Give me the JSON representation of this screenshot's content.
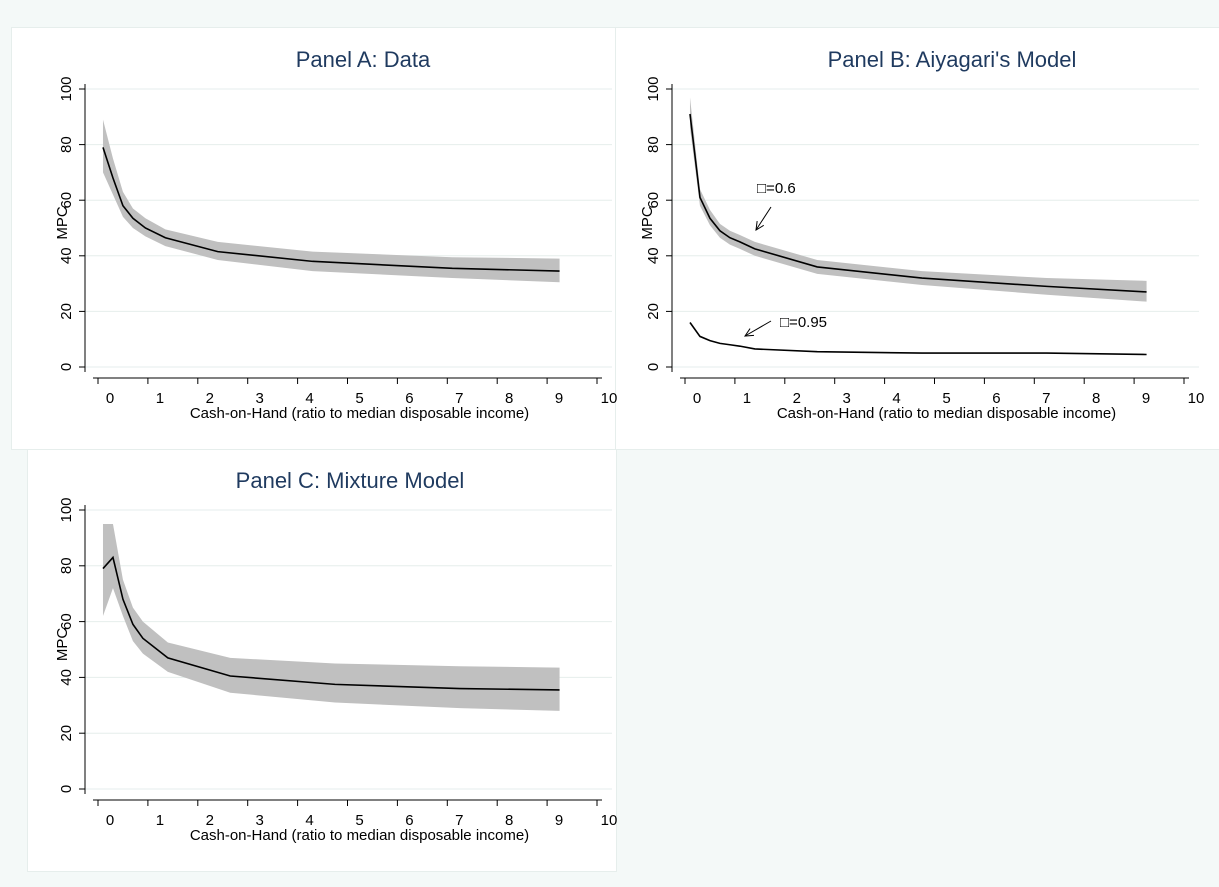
{
  "chart_data": [
    {
      "type": "line",
      "title": "Panel A: Data",
      "xlabel": "Cash-on-Hand (ratio to median disposable income)",
      "ylabel": "MPC",
      "xlim": [
        0,
        10
      ],
      "ylim": [
        0,
        100
      ],
      "xticks": [
        "0",
        "1",
        "2",
        "3",
        "4",
        "5",
        "6",
        "7",
        "8",
        "9",
        "10"
      ],
      "yticks": [
        "0",
        "20",
        "40",
        "60",
        "80",
        "100"
      ],
      "grid": true,
      "series": [
        {
          "x": [
            0.1,
            0.3,
            0.5,
            0.7,
            0.95,
            1.35,
            2.4,
            4.3,
            7.1,
            9.25
          ],
          "y": [
            79,
            68,
            58,
            53.5,
            50,
            46.5,
            41.5,
            38,
            35.5,
            34.5
          ],
          "lower": [
            70,
            62,
            54,
            50,
            47,
            43.5,
            38.5,
            34.5,
            32,
            30.5
          ],
          "upper": [
            89,
            75,
            63,
            57,
            53.5,
            49.5,
            45,
            41.5,
            39.5,
            39
          ]
        }
      ],
      "annotations": []
    },
    {
      "type": "line",
      "title": "Panel B: Aiyagari's Model",
      "xlabel": "Cash-on-Hand (ratio to median disposable income)",
      "ylabel": "MPC",
      "xlim": [
        0,
        10
      ],
      "ylim": [
        0,
        100
      ],
      "xticks": [
        "0",
        "1",
        "2",
        "3",
        "4",
        "5",
        "6",
        "7",
        "8",
        "9",
        "10"
      ],
      "yticks": [
        "0",
        "20",
        "40",
        "60",
        "80",
        "100"
      ],
      "grid": true,
      "series": [
        {
          "x": [
            0.1,
            0.3,
            0.5,
            0.7,
            0.9,
            1.1,
            1.4,
            2.65,
            4.75,
            7.25,
            9.25
          ],
          "y": [
            91,
            61,
            53.5,
            49,
            46.5,
            45,
            42.5,
            36,
            32,
            29,
            27
          ],
          "lower": [
            86,
            58,
            51,
            46.5,
            44,
            42.5,
            40,
            33.5,
            29.5,
            26,
            23.5
          ],
          "upper": [
            97,
            64,
            56.5,
            51.5,
            49,
            47.5,
            45,
            38.5,
            34.5,
            32,
            31
          ]
        },
        {
          "x": [
            0.1,
            0.3,
            0.5,
            0.7,
            0.9,
            1.1,
            1.4,
            2.65,
            4.75,
            7.25,
            9.25
          ],
          "y": [
            16,
            11,
            9.5,
            8.5,
            8,
            7.5,
            6.5,
            5.5,
            5,
            5,
            4.5
          ]
        }
      ],
      "annotations": [
        {
          "text": "□=0.6",
          "at": [
            1.2,
            47
          ]
        },
        {
          "text": "□=0.95",
          "at": [
            0.95,
            10
          ]
        }
      ]
    },
    {
      "type": "line",
      "title": "Panel C: Mixture Model",
      "xlabel": "Cash-on-Hand (ratio to median disposable income)",
      "ylabel": "MPC",
      "xlim": [
        0,
        10
      ],
      "ylim": [
        0,
        100
      ],
      "xticks": [
        "0",
        "1",
        "2",
        "3",
        "4",
        "5",
        "6",
        "7",
        "8",
        "9",
        "10"
      ],
      "yticks": [
        "0",
        "20",
        "40",
        "60",
        "80",
        "100"
      ],
      "grid": true,
      "series": [
        {
          "x": [
            0.1,
            0.3,
            0.5,
            0.7,
            0.9,
            1.4,
            2.65,
            4.75,
            7.25,
            9.25
          ],
          "y": [
            79,
            83,
            68,
            59,
            54,
            47,
            40.5,
            37.5,
            36,
            35.5
          ],
          "lower": [
            62,
            72,
            62,
            53,
            48.5,
            42,
            34.5,
            31,
            29,
            28
          ],
          "upper": [
            95,
            95,
            75,
            65,
            60,
            52.5,
            47,
            45,
            44,
            43.5
          ]
        }
      ],
      "annotations": []
    }
  ],
  "colors": {
    "band": "#c0c0c0",
    "line": "#000000",
    "title": "#1f3a5f",
    "grid": "#e6eeec",
    "background": "#f4f9f8"
  }
}
